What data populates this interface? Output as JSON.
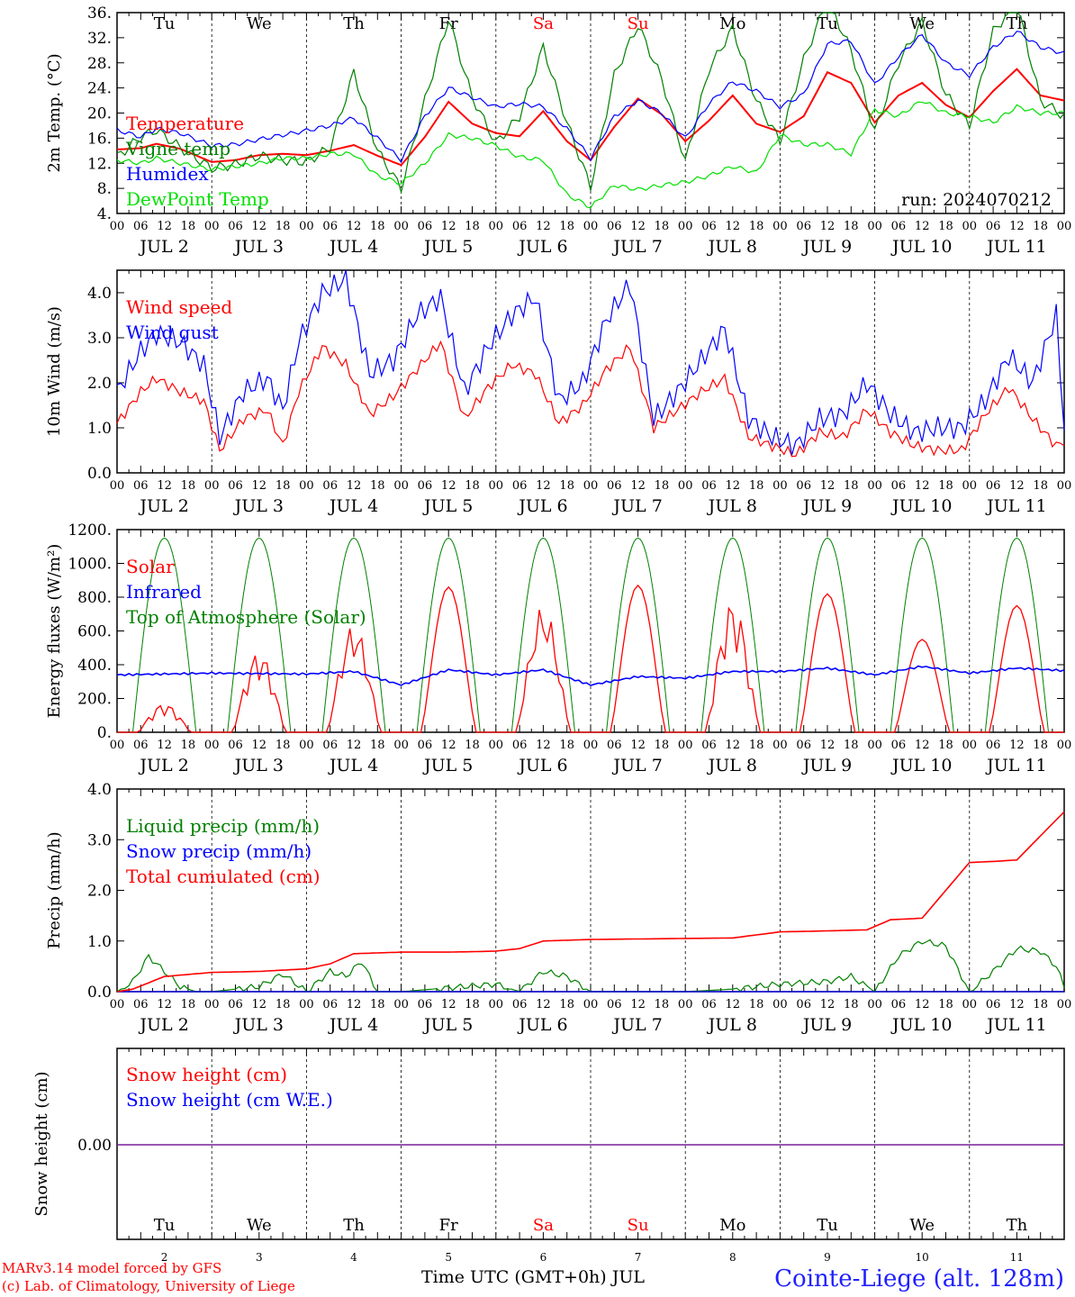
{
  "colors": {
    "temperature": "#ff0000",
    "vigne": "#008000",
    "humidex": "#0000ff",
    "dewpoint": "#00e000",
    "grid": "#000000",
    "weekend": "#ff0000",
    "snow_line": "#7a1f9b",
    "station": "#2020ff"
  },
  "run_label": "run: 2024070212",
  "hour_ticks": [
    "00",
    "06",
    "12",
    "18"
  ],
  "last_hour_tick": "00",
  "days": [
    {
      "dow": "Tu",
      "date": "JUL  2",
      "num": "2",
      "weekend": false
    },
    {
      "dow": "We",
      "date": "JUL  3",
      "num": "3",
      "weekend": false
    },
    {
      "dow": "Th",
      "date": "JUL  4",
      "num": "4",
      "weekend": false
    },
    {
      "dow": "Fr",
      "date": "JUL  5",
      "num": "5",
      "weekend": false
    },
    {
      "dow": "Sa",
      "date": "JUL  6",
      "num": "6",
      "weekend": true
    },
    {
      "dow": "Su",
      "date": "JUL  7",
      "num": "7",
      "weekend": true
    },
    {
      "dow": "Mo",
      "date": "JUL  8",
      "num": "8",
      "weekend": false
    },
    {
      "dow": "Tu",
      "date": "JUL  9",
      "num": "9",
      "weekend": false
    },
    {
      "dow": "We",
      "date": "JUL 10",
      "num": "10",
      "weekend": false
    },
    {
      "dow": "Th",
      "date": "JUL 11",
      "num": "11",
      "weekend": false
    }
  ],
  "footer": {
    "model": "MARv3.14 model forced by GFS",
    "lab": "(c) Lab. of Climatology, University of Liege",
    "time_axis": "Time UTC (GMT+0h) JUL",
    "station": "Cointe-Liege (alt. 128m)"
  },
  "chart_data": [
    {
      "type": "line",
      "ylabel": "2m Temp. (°C)",
      "ylim": [
        4,
        36
      ],
      "yticks": [
        "4.",
        "8.",
        "12.",
        "16.",
        "20.",
        "24.",
        "28.",
        "32.",
        "36."
      ],
      "x_unit": "hours since 2024-07-02 00 UTC",
      "series": [
        {
          "name": "Temperature",
          "color": "#ff0000",
          "x": [
            0,
            6,
            10,
            16,
            24,
            30,
            36,
            42,
            48,
            54,
            60,
            66,
            72,
            78,
            84,
            90,
            96,
            102,
            108,
            114,
            120,
            126,
            132,
            138,
            144,
            150,
            156,
            162,
            168,
            174,
            180,
            186,
            192,
            198,
            204,
            210,
            216,
            222,
            228,
            234,
            240
          ],
          "y": [
            14.2,
            14.4,
            15.1,
            14.3,
            12.2,
            12.5,
            13.3,
            13.5,
            13.3,
            14.0,
            14.9,
            13.2,
            11.7,
            16.2,
            21.8,
            18.3,
            16.8,
            16.3,
            20.3,
            15.5,
            12.5,
            17.8,
            22.3,
            19.8,
            15.5,
            18.8,
            22.8,
            18.3,
            17.0,
            19.5,
            26.5,
            24.8,
            18.5,
            22.8,
            24.8,
            21.3,
            19.3,
            23.5,
            27.0,
            22.8,
            22.0
          ]
        },
        {
          "name": "Vigne temp",
          "color": "#008000",
          "x": [
            0,
            6,
            10,
            16,
            24,
            30,
            36,
            42,
            48,
            54,
            60,
            66,
            72,
            78,
            84,
            90,
            96,
            102,
            108,
            114,
            120,
            126,
            132,
            138,
            144,
            150,
            156,
            162,
            168,
            174,
            180,
            186,
            192,
            198,
            204,
            210,
            216,
            222,
            228,
            234,
            240
          ],
          "y": [
            13.0,
            16.2,
            17.3,
            14.5,
            11.2,
            11.8,
            13.2,
            12.5,
            12.2,
            14.5,
            26.5,
            14.0,
            8.0,
            22.0,
            35.0,
            22.5,
            15.2,
            19.5,
            30.5,
            18.5,
            8.2,
            26.0,
            34.0,
            25.5,
            12.2,
            27.0,
            33.5,
            22.0,
            15.5,
            28.5,
            38.0,
            30.0,
            17.0,
            28.0,
            34.5,
            23.0,
            18.0,
            33.0,
            37.5,
            22.0,
            19.5
          ]
        },
        {
          "name": "Humidex",
          "color": "#0000ff",
          "x": [
            0,
            6,
            10,
            16,
            24,
            30,
            36,
            42,
            48,
            54,
            60,
            66,
            72,
            78,
            84,
            90,
            96,
            102,
            108,
            114,
            120,
            126,
            132,
            138,
            144,
            150,
            156,
            162,
            168,
            174,
            180,
            186,
            192,
            198,
            204,
            210,
            216,
            222,
            228,
            234,
            240
          ],
          "y": [
            17.3,
            16.2,
            17.5,
            16.8,
            14.8,
            15.0,
            15.8,
            16.5,
            17.2,
            18.0,
            19.2,
            16.0,
            12.5,
            19.5,
            24.0,
            22.5,
            21.0,
            21.5,
            21.0,
            17.5,
            12.8,
            19.5,
            22.0,
            20.0,
            16.0,
            21.5,
            25.0,
            23.5,
            21.0,
            23.0,
            31.0,
            31.5,
            24.5,
            29.0,
            32.5,
            28.0,
            26.0,
            30.5,
            33.0,
            30.5,
            29.5
          ]
        },
        {
          "name": "DewPoint Temp",
          "color": "#00e000",
          "x": [
            0,
            6,
            10,
            16,
            24,
            30,
            36,
            42,
            48,
            54,
            60,
            66,
            72,
            78,
            84,
            90,
            96,
            102,
            108,
            114,
            120,
            126,
            132,
            138,
            144,
            150,
            156,
            162,
            168,
            174,
            180,
            186,
            192,
            198,
            204,
            210,
            216,
            222,
            228,
            234,
            240
          ],
          "y": [
            12.5,
            12.0,
            12.8,
            12.0,
            11.0,
            11.5,
            12.0,
            12.8,
            12.8,
            13.5,
            13.5,
            10.0,
            8.8,
            12.0,
            16.5,
            16.0,
            14.8,
            13.0,
            12.5,
            7.0,
            5.0,
            8.5,
            7.8,
            8.5,
            9.0,
            10.0,
            11.5,
            10.5,
            16.5,
            15.0,
            15.0,
            13.5,
            20.5,
            19.5,
            22.0,
            20.0,
            19.5,
            18.5,
            21.0,
            20.0,
            20.0
          ]
        }
      ],
      "run": "run: 2024070212"
    },
    {
      "type": "line",
      "ylabel": "10m Wind (m/s)",
      "ylim": [
        0,
        4.5
      ],
      "yticks": [
        "0.0",
        "1.0",
        "2.0",
        "3.0",
        "4.0"
      ],
      "x_unit": "hours since 2024-07-02 00 UTC",
      "series": [
        {
          "name": "Wind speed",
          "color": "#ff0000",
          "x": [
            0,
            6,
            10,
            16,
            22,
            26,
            32,
            38,
            42,
            46,
            52,
            58,
            64,
            70,
            76,
            82,
            88,
            94,
            100,
            106,
            112,
            118,
            124,
            130,
            136,
            142,
            148,
            154,
            160,
            166,
            172,
            178,
            184,
            190,
            196,
            202,
            208,
            214,
            220,
            226,
            232,
            238,
            240
          ],
          "y": [
            1.1,
            1.8,
            2.1,
            1.8,
            1.6,
            0.5,
            1.2,
            1.4,
            0.6,
            1.8,
            2.8,
            2.4,
            1.3,
            1.7,
            2.3,
            2.9,
            1.2,
            1.9,
            2.4,
            2.2,
            1.1,
            1.5,
            2.3,
            2.8,
            1.0,
            1.4,
            1.8,
            2.1,
            0.8,
            0.6,
            0.4,
            0.9,
            0.8,
            1.4,
            0.9,
            0.6,
            0.5,
            0.5,
            1.3,
            1.9,
            1.2,
            0.6,
            0.7
          ]
        },
        {
          "name": "Wind gust",
          "color": "#0000ff",
          "x": [
            0,
            6,
            10,
            16,
            22,
            26,
            32,
            38,
            42,
            46,
            52,
            58,
            64,
            70,
            76,
            82,
            88,
            94,
            100,
            106,
            112,
            118,
            124,
            130,
            136,
            142,
            148,
            154,
            160,
            166,
            172,
            178,
            184,
            190,
            196,
            202,
            208,
            214,
            220,
            226,
            232,
            238,
            240
          ],
          "y": [
            1.8,
            2.7,
            3.1,
            2.9,
            2.4,
            0.8,
            1.8,
            2.1,
            1.4,
            2.9,
            4.0,
            4.3,
            2.2,
            2.5,
            3.5,
            3.9,
            1.8,
            2.8,
            3.5,
            3.9,
            1.6,
            2.0,
            3.4,
            4.2,
            1.2,
            1.8,
            2.5,
            3.2,
            1.2,
            0.8,
            0.6,
            1.2,
            1.3,
            2.0,
            1.3,
            0.9,
            1.0,
            1.0,
            1.6,
            2.6,
            2.0,
            3.5,
            1.0
          ]
        }
      ]
    },
    {
      "type": "line",
      "ylabel": "Energy fluxes (W/m²)",
      "ylim": [
        0,
        1200
      ],
      "yticks": [
        "0.",
        "200.",
        "400.",
        "600.",
        "800.",
        "1000.",
        "1200."
      ],
      "x_unit": "hours since 2024-07-02 00 UTC",
      "series": [
        {
          "name": "Solar",
          "color": "#ff0000",
          "peaks": [
            170,
            480,
            640,
            860,
            750,
            870,
            780,
            820,
            550,
            750
          ]
        },
        {
          "name": "Infrared",
          "color": "#0000ff",
          "x": [
            0,
            24,
            48,
            60,
            72,
            84,
            96,
            108,
            120,
            132,
            144,
            156,
            168,
            180,
            192,
            204,
            216,
            228,
            240
          ],
          "y": [
            340,
            350,
            345,
            360,
            280,
            370,
            340,
            370,
            280,
            330,
            320,
            360,
            360,
            380,
            340,
            390,
            350,
            380,
            365
          ]
        },
        {
          "name": "Top of Atmosphere (Solar)",
          "color": "#008000",
          "peak": 1150,
          "sunrise_hour": 4,
          "sunset_hour": 20
        }
      ]
    },
    {
      "type": "line",
      "ylabel": "Precip (mm/h)",
      "ylim": [
        0,
        4.0
      ],
      "yticks": [
        "0.0",
        "1.0",
        "2.0",
        "3.0",
        "4.0"
      ],
      "x_unit": "hours since 2024-07-02 00 UTC",
      "series": [
        {
          "name": "Liquid precip (mm/h)",
          "color": "#008000",
          "x": [
            0,
            4,
            8,
            12,
            16,
            20,
            24,
            36,
            42,
            48,
            54,
            58,
            62,
            66,
            72,
            96,
            102,
            108,
            114,
            120,
            144,
            156,
            168,
            180,
            186,
            192,
            198,
            204,
            210,
            216,
            222,
            228,
            234,
            238,
            240
          ],
          "y": [
            0,
            0.2,
            0.7,
            0.4,
            0.1,
            0,
            0,
            0.1,
            0.35,
            0,
            0.4,
            0.3,
            0.6,
            0,
            0,
            0.15,
            0,
            0.4,
            0.3,
            0,
            0,
            0.05,
            0.15,
            0.2,
            0.3,
            0,
            0.7,
            1.0,
            0.9,
            0,
            0.4,
            0.85,
            0.8,
            0.5,
            0.1
          ]
        },
        {
          "name": "Snow precip (mm/h)",
          "color": "#0000ff",
          "x": [
            0,
            240
          ],
          "y": [
            0,
            0
          ]
        },
        {
          "name": "Total cumulated (cm)",
          "color": "#ff0000",
          "x": [
            0,
            4,
            12,
            24,
            36,
            48,
            54,
            60,
            72,
            84,
            96,
            102,
            108,
            120,
            132,
            144,
            156,
            168,
            180,
            190,
            196,
            204,
            210,
            216,
            222,
            228,
            240
          ],
          "y": [
            0,
            0.05,
            0.3,
            0.38,
            0.4,
            0.45,
            0.55,
            0.75,
            0.78,
            0.78,
            0.8,
            0.85,
            1.0,
            1.03,
            1.04,
            1.05,
            1.06,
            1.18,
            1.2,
            1.22,
            1.42,
            1.45,
            2.0,
            2.55,
            2.57,
            2.6,
            3.55
          ]
        }
      ]
    },
    {
      "type": "line",
      "ylabel": "Snow height (cm)",
      "yticks": [
        "0.00"
      ],
      "x_unit": "hours since 2024-07-02 00 UTC",
      "series": [
        {
          "name": "Snow height (cm)",
          "color": "#ff0000",
          "x": [
            0,
            240
          ],
          "y": [
            0,
            0
          ]
        },
        {
          "name": "Snow height (cm W.E.)",
          "color": "#0000ff",
          "x": [
            0,
            240
          ],
          "y": [
            0,
            0
          ]
        }
      ]
    }
  ]
}
